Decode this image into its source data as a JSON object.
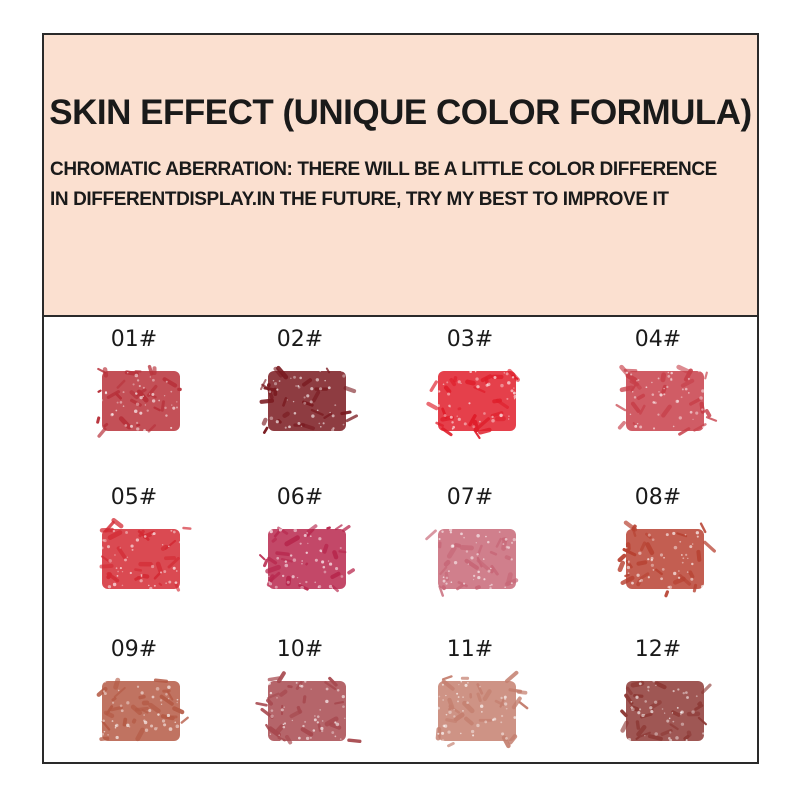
{
  "header": {
    "title": "SKIN EFFECT (UNIQUE COLOR FORMULA)",
    "subtitle_line1": "CHROMATIC ABERRATION: THERE WILL BE A LITTLE COLOR DIFFERENCE",
    "subtitle_line2": "IN DIFFERENTDISPLAY.IN THE FUTURE, TRY MY BEST TO IMPROVE IT"
  },
  "shades": [
    {
      "label": "01#",
      "color": "#b8313a"
    },
    {
      "label": "02#",
      "color": "#7a1a20"
    },
    {
      "label": "03#",
      "color": "#e01e2b"
    },
    {
      "label": "04#",
      "color": "#c8404a"
    },
    {
      "label": "05#",
      "color": "#d42a34"
    },
    {
      "label": "06#",
      "color": "#b8284e"
    },
    {
      "label": "07#",
      "color": "#c86878"
    },
    {
      "label": "08#",
      "color": "#b84232"
    },
    {
      "label": "09#",
      "color": "#b55a45"
    },
    {
      "label": "10#",
      "color": "#a84a50"
    },
    {
      "label": "11#",
      "color": "#c58070"
    },
    {
      "label": "12#",
      "color": "#8e3a36"
    }
  ],
  "colors": {
    "header_bg": "#fbe0d0",
    "border": "#2a2a2a"
  }
}
